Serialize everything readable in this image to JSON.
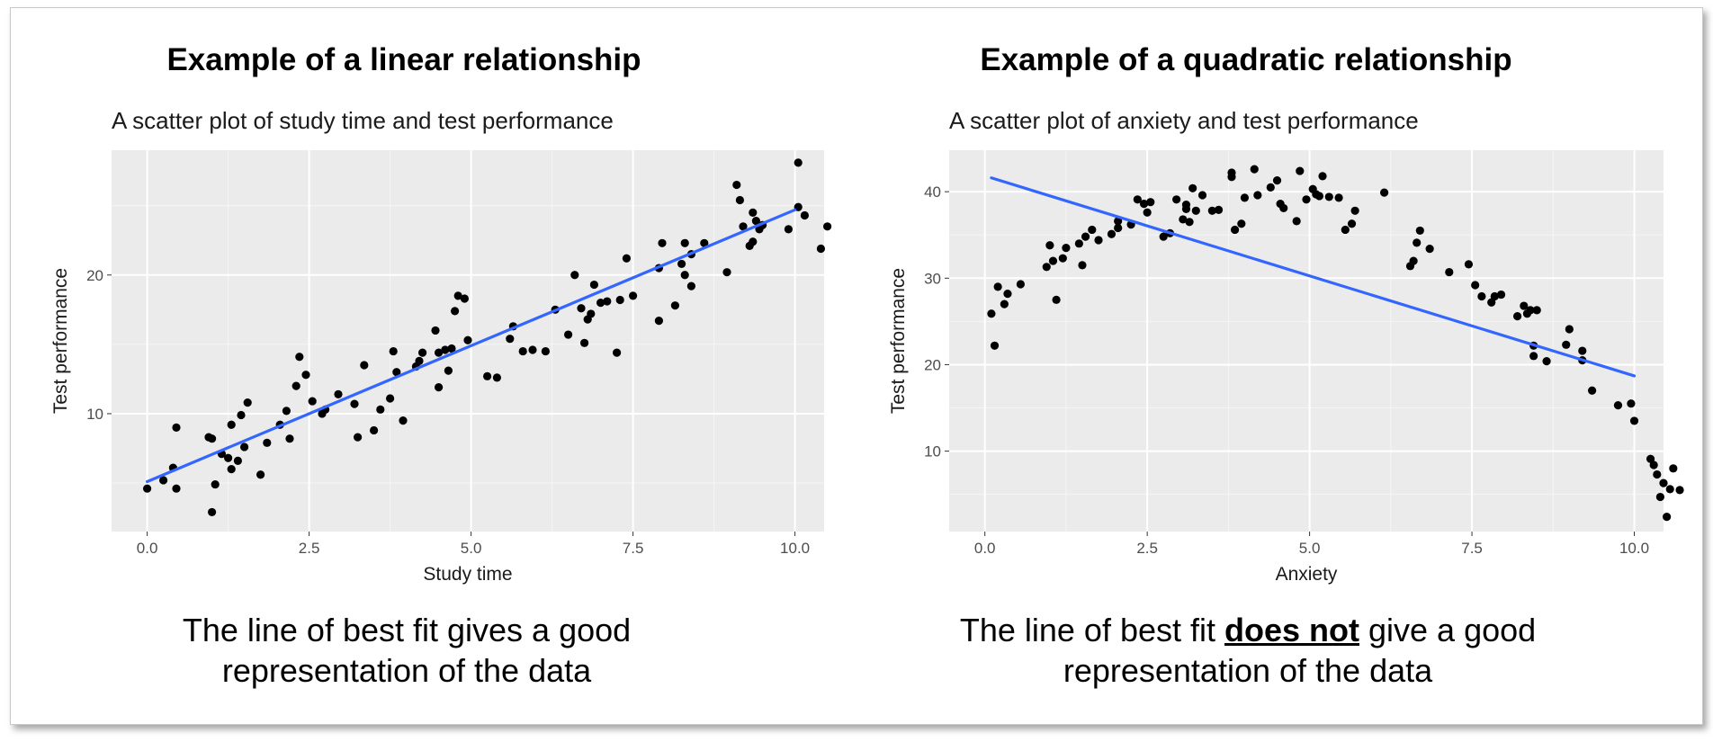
{
  "slide": {
    "left": {
      "heading": "Example of a linear relationship",
      "caption_line1": "The line of best fit gives a good",
      "caption_line2": "representation of the data"
    },
    "right": {
      "heading": "Example of a quadratic relationship",
      "caption_pre": "The line of best fit ",
      "caption_emph": "does not",
      "caption_post": " give a good",
      "caption_line2": "representation of the data"
    }
  },
  "chart_data": [
    {
      "type": "scatter",
      "title": "A scatter plot of study time and test performance",
      "xlabel": "Study time",
      "ylabel": "Test performance",
      "xlim": [
        -0.55,
        10.45
      ],
      "ylim": [
        1.5,
        29.0
      ],
      "xticks": [
        0,
        2.5,
        5,
        7.5,
        10
      ],
      "xtick_labels": [
        "0.0",
        "2.5",
        "5.0",
        "7.5",
        "10.0"
      ],
      "yticks": [
        10,
        20
      ],
      "ytick_labels": [
        "10",
        "20"
      ],
      "background": "#ebebeb",
      "grid": true,
      "point_color": "#000000",
      "fit_color": "#3366ff",
      "fit_line": {
        "x": [
          0,
          10
        ],
        "y": [
          5.1,
          24.7
        ]
      },
      "points": [
        [
          0.0,
          4.6
        ],
        [
          0.25,
          5.2
        ],
        [
          0.4,
          6.1
        ],
        [
          0.45,
          4.6
        ],
        [
          0.45,
          9.0
        ],
        [
          0.95,
          8.3
        ],
        [
          1.0,
          8.2
        ],
        [
          1.0,
          2.9
        ],
        [
          1.05,
          4.9
        ],
        [
          1.15,
          7.1
        ],
        [
          1.25,
          6.8
        ],
        [
          1.3,
          6.0
        ],
        [
          1.3,
          9.2
        ],
        [
          1.4,
          6.6
        ],
        [
          1.45,
          9.9
        ],
        [
          1.5,
          7.6
        ],
        [
          1.55,
          10.8
        ],
        [
          1.75,
          5.6
        ],
        [
          1.85,
          7.9
        ],
        [
          2.05,
          9.2
        ],
        [
          2.15,
          10.2
        ],
        [
          2.2,
          8.2
        ],
        [
          2.3,
          12.0
        ],
        [
          2.35,
          14.1
        ],
        [
          2.45,
          12.8
        ],
        [
          2.55,
          10.9
        ],
        [
          2.7,
          10.0
        ],
        [
          2.75,
          10.3
        ],
        [
          2.95,
          11.4
        ],
        [
          3.2,
          10.7
        ],
        [
          3.25,
          8.3
        ],
        [
          3.35,
          13.5
        ],
        [
          3.5,
          8.8
        ],
        [
          3.6,
          10.3
        ],
        [
          3.75,
          11.1
        ],
        [
          3.8,
          14.5
        ],
        [
          3.85,
          13.0
        ],
        [
          3.95,
          9.5
        ],
        [
          4.15,
          13.4
        ],
        [
          4.2,
          13.8
        ],
        [
          4.25,
          14.4
        ],
        [
          4.45,
          16.0
        ],
        [
          4.5,
          11.9
        ],
        [
          4.5,
          14.4
        ],
        [
          4.6,
          14.6
        ],
        [
          4.65,
          13.1
        ],
        [
          4.7,
          14.7
        ],
        [
          4.75,
          17.4
        ],
        [
          4.8,
          18.5
        ],
        [
          4.9,
          18.3
        ],
        [
          4.95,
          15.3
        ],
        [
          5.25,
          12.7
        ],
        [
          5.4,
          12.6
        ],
        [
          5.6,
          15.4
        ],
        [
          5.65,
          16.3
        ],
        [
          5.8,
          14.5
        ],
        [
          5.95,
          14.6
        ],
        [
          6.15,
          14.5
        ],
        [
          6.3,
          17.5
        ],
        [
          6.5,
          15.7
        ],
        [
          6.6,
          20.0
        ],
        [
          6.7,
          17.6
        ],
        [
          6.75,
          15.1
        ],
        [
          6.8,
          16.8
        ],
        [
          6.85,
          17.2
        ],
        [
          6.9,
          19.3
        ],
        [
          7.0,
          18.0
        ],
        [
          7.1,
          18.1
        ],
        [
          7.25,
          14.4
        ],
        [
          7.3,
          18.2
        ],
        [
          7.4,
          21.2
        ],
        [
          7.5,
          18.5
        ],
        [
          7.9,
          16.7
        ],
        [
          7.9,
          20.5
        ],
        [
          7.95,
          22.3
        ],
        [
          8.15,
          17.8
        ],
        [
          8.25,
          20.8
        ],
        [
          8.3,
          20.0
        ],
        [
          8.3,
          22.3
        ],
        [
          8.4,
          19.2
        ],
        [
          8.4,
          21.5
        ],
        [
          8.6,
          22.3
        ],
        [
          8.95,
          20.2
        ],
        [
          9.1,
          26.5
        ],
        [
          9.15,
          25.4
        ],
        [
          9.2,
          23.5
        ],
        [
          9.3,
          22.1
        ],
        [
          9.35,
          22.4
        ],
        [
          9.35,
          24.5
        ],
        [
          9.4,
          23.9
        ],
        [
          9.45,
          23.3
        ],
        [
          9.5,
          23.6
        ],
        [
          9.9,
          23.3
        ],
        [
          10.05,
          28.1
        ],
        [
          10.05,
          24.9
        ],
        [
          10.15,
          24.3
        ],
        [
          10.4,
          21.9
        ],
        [
          10.5,
          23.5
        ]
      ]
    },
    {
      "type": "scatter",
      "title": "A scatter plot of anxiety and test performance",
      "xlabel": "Anxiety",
      "ylabel": "Test performance",
      "xlim": [
        -0.55,
        10.45
      ],
      "ylim": [
        0.7,
        44.8
      ],
      "xticks": [
        0,
        2.5,
        5,
        7.5,
        10
      ],
      "xtick_labels": [
        "0.0",
        "2.5",
        "5.0",
        "7.5",
        "10.0"
      ],
      "yticks": [
        10,
        20,
        30,
        40
      ],
      "ytick_labels": [
        "10",
        "20",
        "30",
        "40"
      ],
      "background": "#ebebeb",
      "grid": true,
      "point_color": "#000000",
      "fit_color": "#3366ff",
      "fit_line": {
        "x": [
          0.1,
          10.0
        ],
        "y": [
          41.6,
          18.7
        ]
      },
      "points": [
        [
          0.1,
          25.9
        ],
        [
          0.15,
          22.2
        ],
        [
          0.2,
          29.0
        ],
        [
          0.3,
          27.0
        ],
        [
          0.35,
          28.2
        ],
        [
          0.55,
          29.3
        ],
        [
          0.95,
          31.3
        ],
        [
          1.0,
          33.8
        ],
        [
          1.05,
          32.0
        ],
        [
          1.1,
          27.5
        ],
        [
          1.2,
          32.3
        ],
        [
          1.25,
          33.5
        ],
        [
          1.45,
          34.0
        ],
        [
          1.5,
          31.5
        ],
        [
          1.55,
          34.8
        ],
        [
          1.65,
          35.6
        ],
        [
          1.75,
          34.4
        ],
        [
          1.95,
          35.1
        ],
        [
          2.05,
          35.8
        ],
        [
          2.05,
          36.6
        ],
        [
          2.25,
          36.2
        ],
        [
          2.35,
          39.1
        ],
        [
          2.45,
          38.6
        ],
        [
          2.5,
          37.6
        ],
        [
          2.55,
          38.8
        ],
        [
          2.75,
          34.8
        ],
        [
          2.85,
          35.2
        ],
        [
          2.95,
          39.1
        ],
        [
          3.05,
          36.8
        ],
        [
          3.1,
          38.0
        ],
        [
          3.1,
          38.5
        ],
        [
          3.15,
          36.5
        ],
        [
          3.2,
          40.4
        ],
        [
          3.25,
          37.8
        ],
        [
          3.35,
          39.6
        ],
        [
          3.5,
          37.8
        ],
        [
          3.6,
          37.9
        ],
        [
          3.8,
          41.7
        ],
        [
          3.8,
          42.2
        ],
        [
          3.85,
          35.6
        ],
        [
          3.95,
          36.3
        ],
        [
          4.0,
          39.3
        ],
        [
          4.15,
          42.6
        ],
        [
          4.2,
          39.6
        ],
        [
          4.4,
          40.5
        ],
        [
          4.5,
          41.3
        ],
        [
          4.55,
          38.6
        ],
        [
          4.6,
          38.1
        ],
        [
          4.8,
          36.6
        ],
        [
          4.85,
          42.4
        ],
        [
          4.95,
          39.1
        ],
        [
          5.05,
          40.3
        ],
        [
          5.1,
          39.7
        ],
        [
          5.15,
          39.5
        ],
        [
          5.2,
          41.8
        ],
        [
          5.3,
          39.4
        ],
        [
          5.45,
          39.3
        ],
        [
          5.55,
          35.6
        ],
        [
          5.65,
          36.3
        ],
        [
          5.7,
          37.8
        ],
        [
          6.15,
          39.9
        ],
        [
          6.55,
          31.4
        ],
        [
          6.6,
          32.0
        ],
        [
          6.65,
          34.1
        ],
        [
          6.7,
          35.5
        ],
        [
          6.85,
          33.4
        ],
        [
          7.15,
          30.7
        ],
        [
          7.45,
          31.6
        ],
        [
          7.55,
          29.2
        ],
        [
          7.65,
          27.9
        ],
        [
          7.8,
          27.2
        ],
        [
          7.85,
          27.9
        ],
        [
          7.95,
          28.1
        ],
        [
          8.2,
          25.6
        ],
        [
          8.3,
          26.8
        ],
        [
          8.35,
          25.9
        ],
        [
          8.4,
          26.3
        ],
        [
          8.45,
          22.2
        ],
        [
          8.5,
          26.3
        ],
        [
          8.45,
          21.0
        ],
        [
          8.65,
          20.4
        ],
        [
          8.95,
          22.3
        ],
        [
          9.0,
          24.1
        ],
        [
          9.2,
          20.5
        ],
        [
          9.2,
          21.6
        ],
        [
          9.35,
          17.0
        ],
        [
          9.75,
          15.3
        ],
        [
          9.95,
          15.5
        ],
        [
          10.0,
          13.5
        ],
        [
          10.25,
          9.1
        ],
        [
          10.3,
          8.4
        ],
        [
          10.35,
          7.3
        ],
        [
          10.4,
          4.7
        ],
        [
          10.45,
          6.3
        ],
        [
          10.5,
          2.4
        ],
        [
          10.55,
          5.6
        ],
        [
          10.6,
          8.0
        ],
        [
          10.7,
          5.5
        ]
      ]
    }
  ]
}
